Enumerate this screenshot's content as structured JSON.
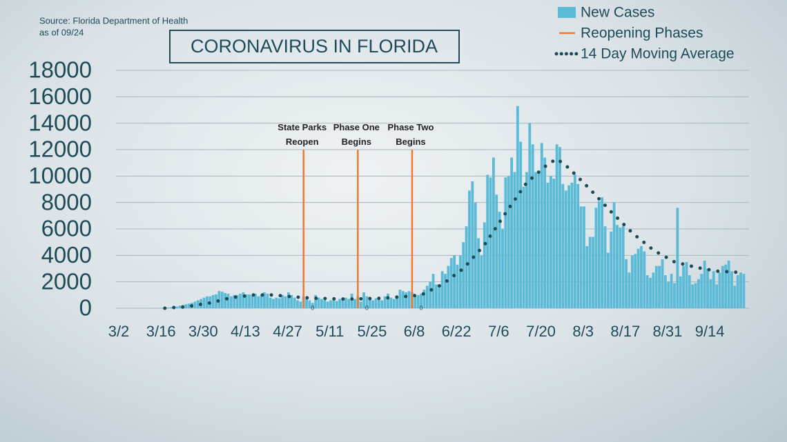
{
  "source_lines": [
    "Source: Florida Department of Health",
    "as of 09/24"
  ],
  "chart_data": {
    "type": "bar",
    "title": "CORONAVIRUS IN FLORIDA",
    "categories": [
      "3/2",
      null,
      null,
      null,
      null,
      null,
      null,
      null,
      null,
      null,
      null,
      null,
      null,
      null,
      "3/16",
      null,
      null,
      null,
      null,
      null,
      null,
      null,
      null,
      null,
      null,
      null,
      null,
      null,
      "3/30",
      null,
      null,
      null,
      null,
      null,
      null,
      null,
      null,
      null,
      null,
      null,
      null,
      null,
      "4/13",
      null,
      null,
      null,
      null,
      null,
      null,
      null,
      null,
      null,
      null,
      null,
      null,
      null,
      "4/27",
      null,
      null,
      null,
      null,
      null,
      null,
      null,
      null,
      null,
      null,
      null,
      null,
      null,
      "5/11",
      null,
      null,
      null,
      null,
      null,
      null,
      null,
      null,
      null,
      null,
      null,
      null,
      null,
      "5/25",
      null,
      null,
      null,
      null,
      null,
      null,
      null,
      null,
      null,
      null,
      null,
      null,
      null,
      "6/8",
      null,
      null,
      null,
      null,
      null,
      null,
      null,
      null,
      null,
      null,
      null,
      null,
      null,
      "6/22",
      null,
      null,
      null,
      null,
      null,
      null,
      null,
      null,
      null,
      null,
      null,
      null,
      null,
      "7/6",
      null,
      null,
      null,
      null,
      null,
      null,
      null,
      null,
      null,
      null,
      null,
      null,
      null,
      "7/20",
      null,
      null,
      null,
      null,
      null,
      null,
      null,
      null,
      null,
      null,
      null,
      null,
      null,
      "8/3",
      null,
      null,
      null,
      null,
      null,
      null,
      null,
      null,
      null,
      null,
      null,
      null,
      null,
      "8/17",
      null,
      null,
      null,
      null,
      null,
      null,
      null,
      null,
      null,
      null,
      null,
      null,
      null,
      "8/31",
      null,
      null,
      null,
      null,
      null,
      null,
      null,
      null,
      null,
      null,
      null,
      null,
      null,
      "9/14",
      null,
      null,
      null,
      null,
      null,
      null,
      null,
      null,
      null
    ],
    "series": [
      {
        "name": "New Cases",
        "color": "#5bbad5",
        "values": [
          0,
          0,
          0,
          2,
          2,
          5,
          3,
          5,
          8,
          15,
          10,
          20,
          25,
          50,
          50,
          70,
          110,
          130,
          200,
          250,
          300,
          350,
          400,
          500,
          600,
          700,
          800,
          900,
          900,
          1000,
          1050,
          1300,
          1250,
          1150,
          1100,
          900,
          1000,
          1000,
          1100,
          1200,
          1050,
          1050,
          1000,
          1100,
          900,
          1000,
          1200,
          1100,
          800,
          700,
          800,
          750,
          1000,
          900,
          1200,
          1000,
          800,
          600,
          500,
          900,
          700,
          600,
          400,
          1000,
          800,
          700,
          600,
          500,
          600,
          700,
          550,
          700,
          600,
          800,
          700,
          1100,
          700,
          900,
          500,
          1200,
          900,
          800,
          600,
          750,
          700,
          600,
          900,
          1100,
          800,
          700,
          900,
          1400,
          1300,
          1200,
          1300,
          1200,
          900,
          1000,
          1100,
          1400,
          1700,
          2000,
          2600,
          1800,
          1700,
          2800,
          2600,
          3200,
          3800,
          4000,
          3300,
          4000,
          5000,
          6200,
          8900,
          9600,
          8000,
          5300,
          4000,
          6500,
          10100,
          9900,
          11400,
          8600,
          7300,
          6000,
          9900,
          10000,
          11400,
          10300,
          15300,
          12600,
          9200,
          10300,
          14000,
          12400,
          10300,
          10400,
          12500,
          11400,
          9500,
          10000,
          9800,
          12400,
          12200,
          9400,
          8900,
          9300,
          9500,
          10100,
          9400,
          7700,
          7700,
          4700,
          5400,
          5400,
          7600,
          8100,
          8400,
          6200,
          4200,
          5800,
          8000,
          6300,
          6100,
          6200,
          3700,
          2700,
          4000,
          4100,
          4500,
          4700,
          4300,
          2500,
          2300,
          2700,
          3200,
          3200,
          3700,
          2500,
          2000,
          2600,
          1900,
          7600,
          2400,
          3200,
          3500,
          2500,
          1800,
          1900,
          2200,
          2600,
          3600,
          3000,
          2200,
          2800,
          1800,
          2700,
          3200,
          3300,
          3600,
          2800,
          1700,
          2500,
          2700,
          2600
        ]
      },
      {
        "name": "14 Day Moving Average",
        "color": "#1d4b55",
        "style": "dotted",
        "values": [
          null,
          null,
          null,
          null,
          null,
          null,
          null,
          null,
          null,
          null,
          null,
          null,
          null,
          0,
          20,
          30,
          50,
          60,
          70,
          90,
          100,
          140,
          180,
          210,
          250,
          290,
          330,
          360,
          400,
          460,
          510,
          570,
          630,
          690,
          740,
          800,
          830,
          860,
          890,
          910,
          940,
          970,
          1000,
          1000,
          1000,
          1000,
          1000,
          1000,
          1000,
          1000,
          980,
          960,
          940,
          910,
          890,
          870,
          850,
          840,
          820,
          810,
          790,
          780,
          760,
          750,
          740,
          740,
          730,
          720,
          710,
          710,
          700,
          700,
          700,
          700,
          700,
          700,
          700,
          700,
          710,
          710,
          720,
          730,
          740,
          740,
          750,
          760,
          780,
          790,
          810,
          820,
          840,
          850,
          870,
          890,
          910,
          940,
          960,
          980,
          1000,
          1110,
          1230,
          1340,
          1460,
          1570,
          1690,
          1800,
          1970,
          2140,
          2310,
          2490,
          2660,
          2830,
          3000,
          3260,
          3510,
          3770,
          4030,
          4290,
          4540,
          4800,
          5140,
          5490,
          5830,
          6170,
          6510,
          6860,
          7200,
          7530,
          7860,
          8190,
          8510,
          8840,
          9170,
          9500,
          9700,
          9900,
          10100,
          10300,
          10500,
          10700,
          10900,
          11030,
          11170,
          11300,
          11130,
          10950,
          10780,
          10600,
          10370,
          10140,
          9910,
          9690,
          9460,
          9230,
          9000,
          8760,
          8510,
          8270,
          8030,
          7790,
          7540,
          7300,
          7070,
          6840,
          6610,
          6390,
          6160,
          5930,
          5700,
          5510,
          5330,
          5140,
          4960,
          4770,
          4590,
          4400,
          4270,
          4140,
          4010,
          3890,
          3760,
          3630,
          3500,
          3440,
          3390,
          3330,
          3270,
          3210,
          3160,
          3100,
          3060,
          3010,
          2970,
          2930,
          2890,
          2840,
          2800,
          2790,
          2780,
          2770,
          2760,
          2740,
          2730,
          2720,
          2710,
          2700
        ]
      }
    ],
    "reopening_phases": {
      "name": "Reopening Phases",
      "color": "#f07b2f",
      "lines": [
        {
          "label": "State Parks Reopen",
          "x": 59,
          "values": [
            0,
            12000
          ]
        },
        {
          "label": "Phase One Begins",
          "x": 77,
          "values": [
            0,
            12000
          ]
        },
        {
          "label": "Phase Two Begins",
          "x": 95,
          "values": [
            0,
            12000
          ]
        }
      ]
    },
    "ylim": [
      0,
      18000
    ],
    "yticks": [
      0,
      2000,
      4000,
      6000,
      8000,
      10000,
      12000,
      14000,
      16000,
      18000
    ],
    "grid": true,
    "legend": "top-right"
  }
}
